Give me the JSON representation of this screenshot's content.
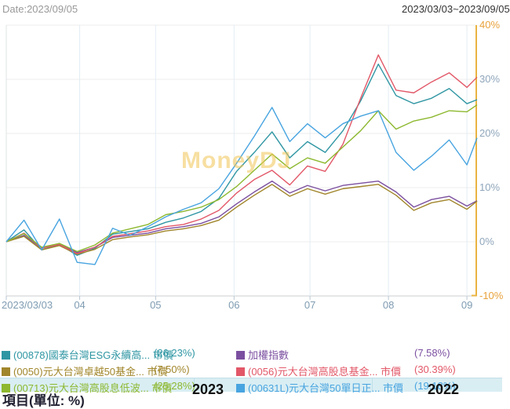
{
  "header": {
    "date_label": "Date:2023/09/05",
    "range_label": "2023/03/03~2023/09/05"
  },
  "watermark": "MoneyDJ",
  "chart_data": {
    "type": "line",
    "title": "",
    "x_unit": "days from 2023/03/03",
    "x_total_days": 186,
    "ylim": [
      -10,
      40
    ],
    "grid": true,
    "legend_position": "bottom",
    "x_days": [
      0,
      7,
      14,
      21,
      28,
      35,
      42,
      49,
      56,
      63,
      70,
      77,
      84,
      91,
      98,
      105,
      112,
      119,
      126,
      133,
      140,
      147,
      154,
      161,
      168,
      175,
      182,
      186
    ],
    "yticks": [
      {
        "value": 40,
        "label": "40%",
        "color": "#e8a23c"
      },
      {
        "value": 30,
        "label": "30%",
        "color": "#8fa6bb"
      },
      {
        "value": 20,
        "label": "20%",
        "color": "#8fa6bb"
      },
      {
        "value": 10,
        "label": "10%",
        "color": "#8fa6bb"
      },
      {
        "value": 0,
        "label": "0%",
        "color": "#8fa6bb"
      },
      {
        "value": -10,
        "label": "-10%",
        "color": "#e8a23c"
      }
    ],
    "xticks": [
      {
        "day": 0,
        "label": "2023/03/03"
      },
      {
        "day": 29,
        "label": "04"
      },
      {
        "day": 59,
        "label": "05"
      },
      {
        "day": 90,
        "label": "06"
      },
      {
        "day": 120,
        "label": "07"
      },
      {
        "day": 151,
        "label": "08"
      },
      {
        "day": 182,
        "label": "09"
      }
    ],
    "series": [
      {
        "name": "(00878)國泰台灣ESG永續高... 市價",
        "final": "26.23%",
        "color": "#2f96a3",
        "values": [
          0,
          2.2,
          -1.5,
          -0.5,
          -2.5,
          -1.2,
          1.4,
          1.9,
          2.4,
          3.6,
          4.4,
          5.6,
          8.0,
          13.0,
          16.5,
          20.3,
          15.5,
          18.5,
          16.5,
          20.5,
          26.0,
          32.8,
          27.0,
          25.5,
          26.5,
          28.3,
          25.5,
          26.23
        ]
      },
      {
        "name": "加權指數",
        "final": "7.58%",
        "color": "#7b4fa0",
        "values": [
          0,
          1.2,
          -1.2,
          -0.4,
          -2.0,
          -1.0,
          0.8,
          1.2,
          1.6,
          2.4,
          2.8,
          3.4,
          4.6,
          7.0,
          9.2,
          11.2,
          9.0,
          10.4,
          9.4,
          10.4,
          10.8,
          11.2,
          9.2,
          6.4,
          7.8,
          8.4,
          6.6,
          7.58
        ]
      },
      {
        "name": "(0050)元大台灣卓越50基金... 市價",
        "final": "7.50%",
        "color": "#a1862b",
        "values": [
          0,
          1.0,
          -1.5,
          -0.7,
          -2.3,
          -1.4,
          0.4,
          0.9,
          1.3,
          2.0,
          2.4,
          3.0,
          4.0,
          6.4,
          8.6,
          10.6,
          8.4,
          9.8,
          8.8,
          9.8,
          10.2,
          10.6,
          8.6,
          5.8,
          7.2,
          7.8,
          6.0,
          7.5
        ]
      },
      {
        "name": "(0056)元大台灣高股息基金... 市價",
        "final": "30.39%",
        "color": "#e25868",
        "values": [
          0,
          1.6,
          -1.2,
          -0.5,
          -2.2,
          -1.0,
          1.0,
          1.5,
          2.0,
          2.8,
          3.2,
          4.2,
          5.8,
          9.0,
          11.5,
          13.2,
          10.5,
          14.0,
          13.0,
          18.0,
          26.5,
          34.5,
          28.0,
          27.5,
          29.5,
          31.2,
          28.5,
          30.39
        ]
      },
      {
        "name": "(00713)元大台灣高股息低波... 市價",
        "final": "25.28%",
        "color": "#8db82f",
        "values": [
          0,
          1.5,
          -1.0,
          -0.3,
          -1.8,
          -0.6,
          1.6,
          2.4,
          3.2,
          5.0,
          5.6,
          6.4,
          7.8,
          10.2,
          13.2,
          16.2,
          13.5,
          15.5,
          14.5,
          17.5,
          20.5,
          24.2,
          20.8,
          22.3,
          23.0,
          24.2,
          24.0,
          25.28
        ]
      },
      {
        "name": "(00631L)元大台灣50單日正... 市價",
        "final": "19.18%",
        "color": "#48a4e0",
        "values": [
          0,
          4.0,
          -1.5,
          4.2,
          -3.8,
          -4.2,
          2.5,
          1.2,
          2.8,
          4.6,
          6.0,
          7.2,
          9.8,
          14.5,
          19.5,
          24.8,
          18.5,
          21.8,
          19.2,
          21.8,
          23.2,
          24.2,
          16.5,
          13.2,
          15.8,
          18.8,
          14.2,
          19.18
        ]
      }
    ]
  },
  "legend": {
    "items": [
      {
        "label": "(00878)國泰台灣ESG永續高... 市價",
        "value": "(26.23%)",
        "color": "#2f96a3",
        "column": "left",
        "row": 0,
        "highlight": false
      },
      {
        "label": "加權指數",
        "value": "(7.58%)",
        "color": "#7b4fa0",
        "column": "right",
        "row": 0,
        "highlight": false
      },
      {
        "label": "(0050)元大台灣卓越50基金... 市價",
        "value": "(7.50%)",
        "color": "#a1862b",
        "column": "left",
        "row": 1,
        "highlight": false
      },
      {
        "label": "(0056)元大台灣高股息基金... 市價",
        "value": "(30.39%)",
        "color": "#e25868",
        "column": "right",
        "row": 1,
        "highlight": false
      },
      {
        "label": "(00713)元大台灣高股息低波... 市價",
        "value": "(25.28%)",
        "color": "#8db82f",
        "column": "left",
        "row": 2,
        "highlight": true
      },
      {
        "label": "(00631L)元大台灣50單日正... 市價",
        "value": "(19.18%)",
        "color": "#48a4e0",
        "column": "right",
        "row": 2,
        "highlight": true
      }
    ]
  },
  "table": {
    "item_header": "項目(單位: %)",
    "year_left": "2023",
    "year_right": "2022"
  },
  "colors": {
    "right_axis_line": "#eab441",
    "h_grid": "#ececec",
    "v_grid": "#e3edf4",
    "bottom_axis": "#c9ced2",
    "tick": "#b9c6d0",
    "plot_left_edge": "#dfe3e6",
    "highlight_band": "#d9eef3"
  }
}
